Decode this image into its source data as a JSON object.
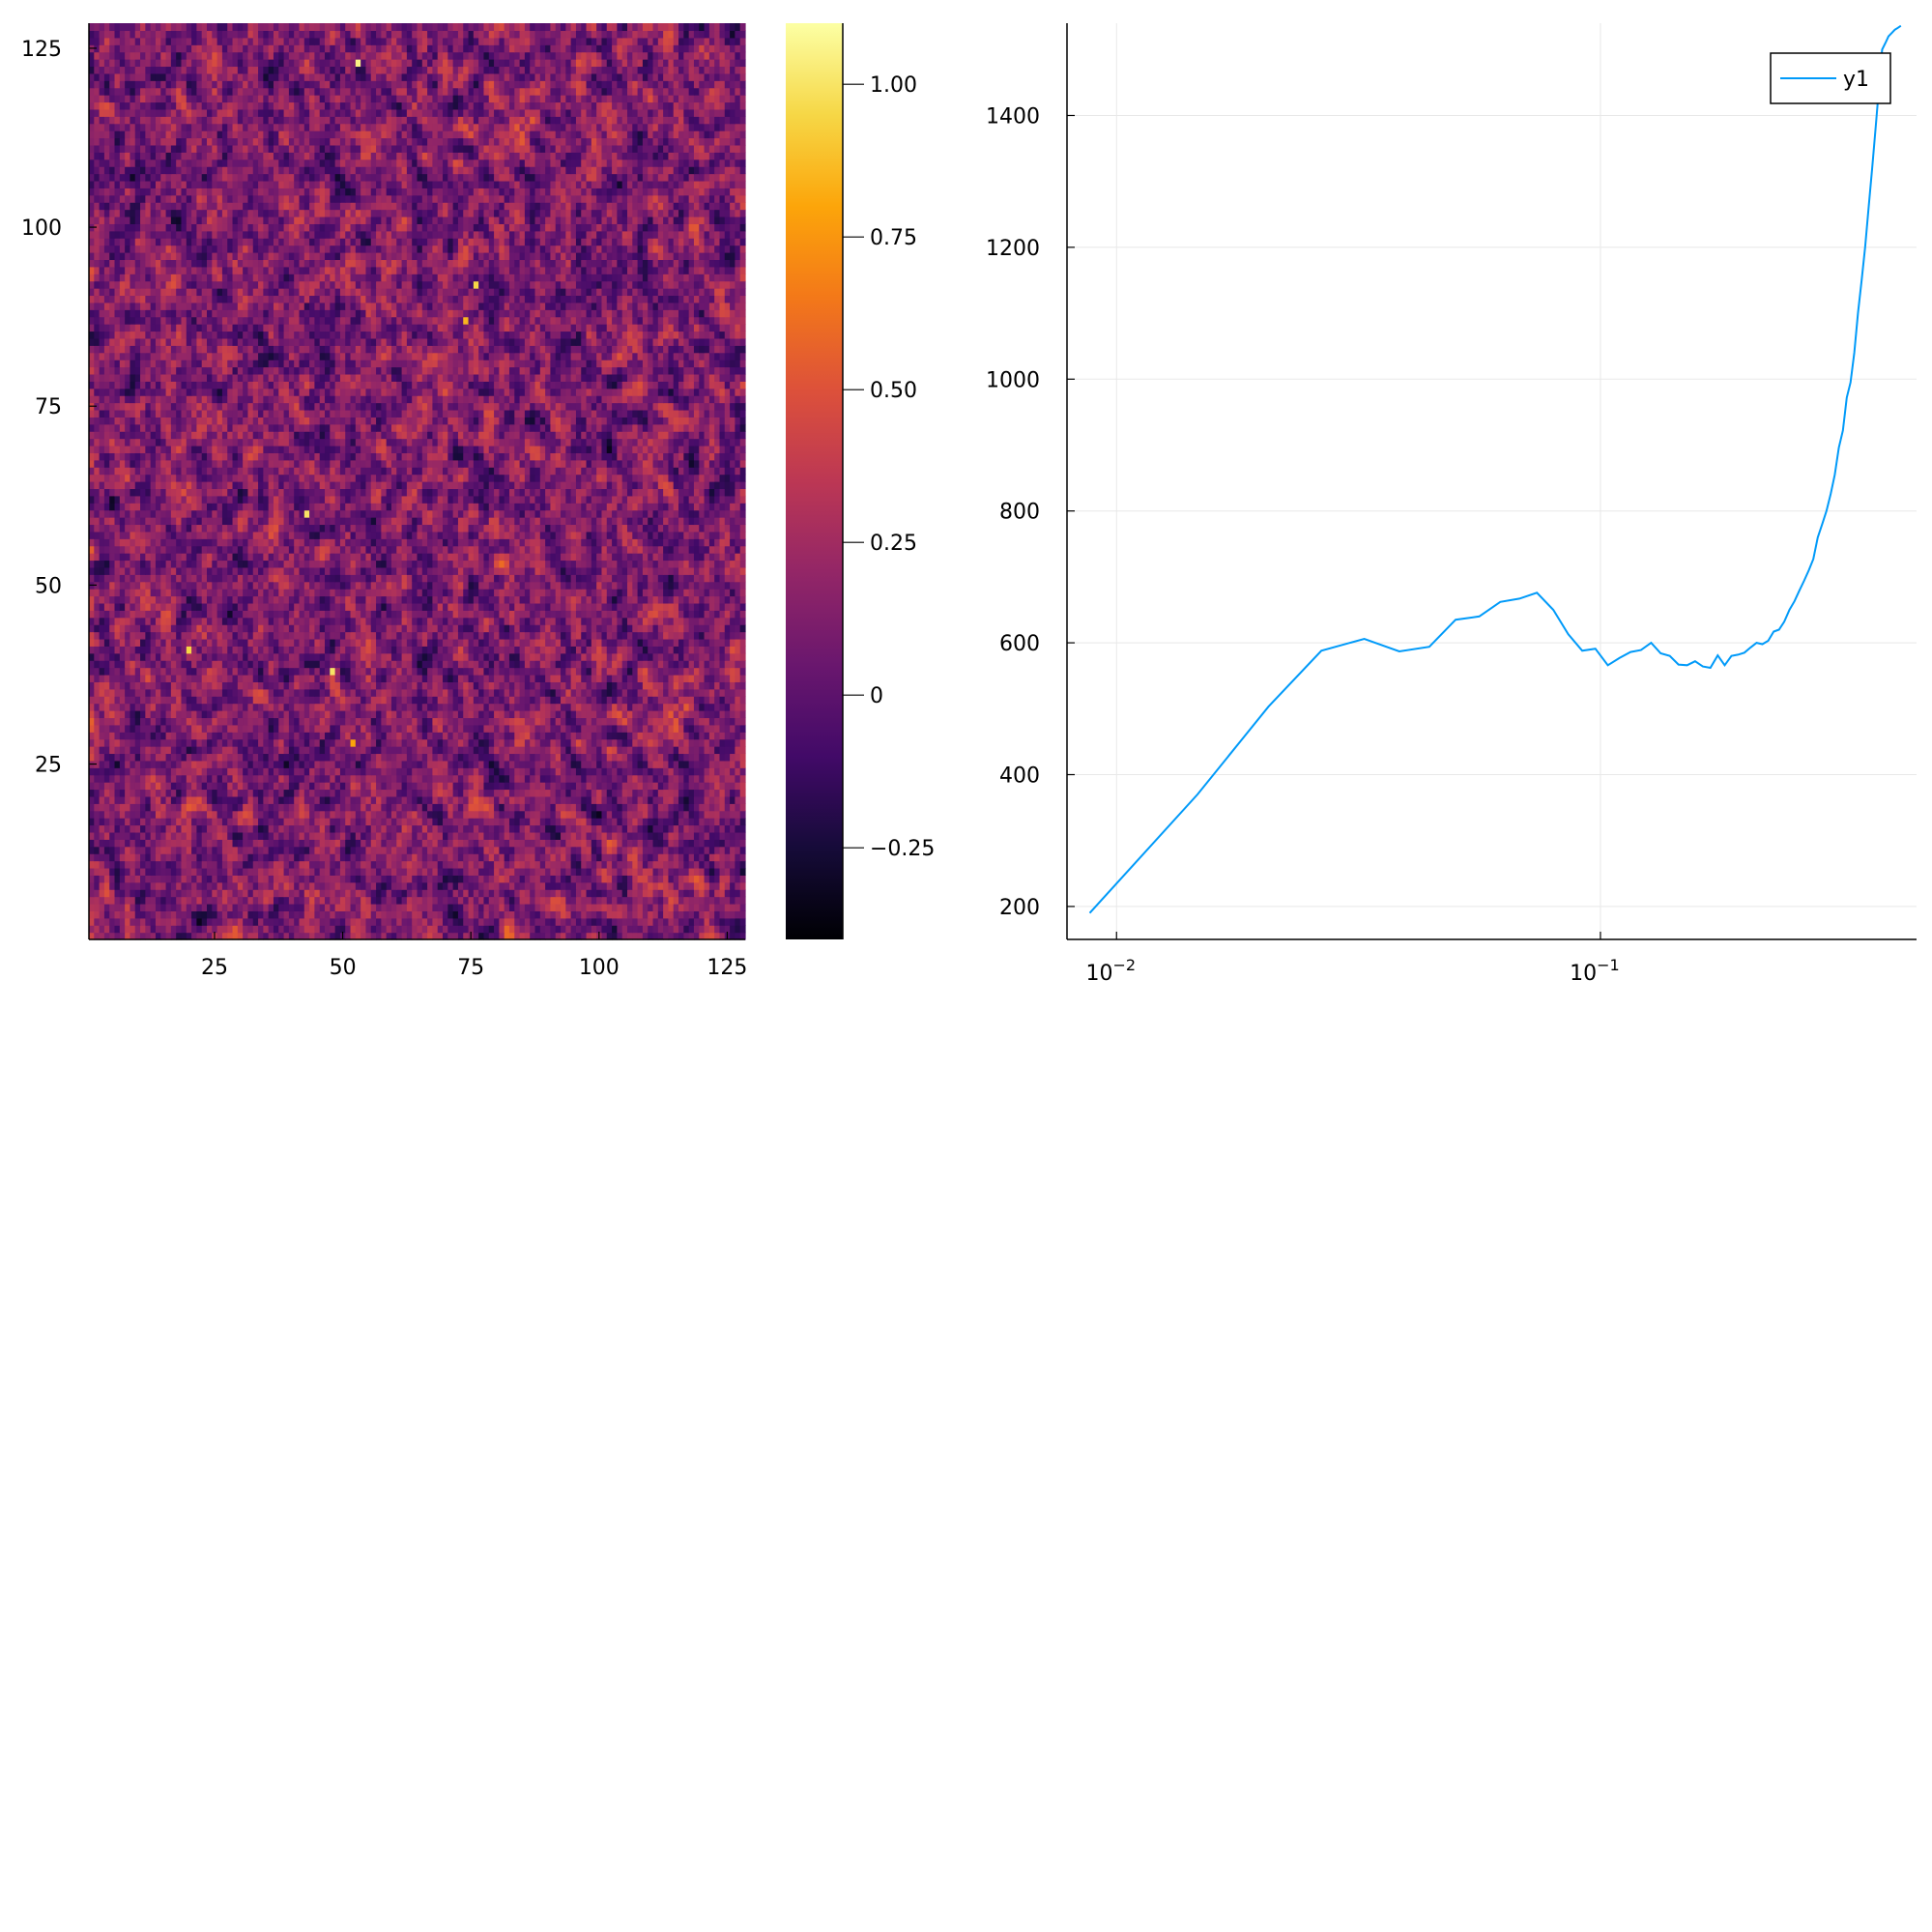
{
  "chart_data": [
    {
      "type": "heatmap",
      "title": "",
      "xlabel": "",
      "ylabel": "",
      "grid": false,
      "xlim": [
        0.5,
        128.5
      ],
      "ylim": [
        0.5,
        128.5
      ],
      "grid_size": [
        128,
        128
      ],
      "values_note_sampled": false,
      "x_ticks": [
        25,
        50,
        75,
        100,
        125
      ],
      "x_tick_labels": [
        "25",
        "50",
        "75",
        "100",
        "125"
      ],
      "y_ticks": [
        25,
        50,
        75,
        100,
        125
      ],
      "y_tick_labels": [
        "25",
        "50",
        "75",
        "100",
        "125"
      ],
      "colorbar": {
        "colormap": "inferno",
        "clim": [
          -0.4,
          1.1
        ],
        "ticks": [
          -0.25,
          0,
          0.25,
          0.5,
          0.75,
          1.0
        ],
        "tick_labels": [
          "−0.25",
          "0",
          "0.25",
          "0.50",
          "0.75",
          "1.00"
        ]
      },
      "mean_value": 0.12,
      "hotspots": [
        {
          "x": 53,
          "y": 123,
          "value": 1.05
        },
        {
          "x": 43,
          "y": 60,
          "value": 1.0
        },
        {
          "x": 48,
          "y": 38,
          "value": 1.0
        },
        {
          "x": 20,
          "y": 41,
          "value": 0.95
        },
        {
          "x": 76,
          "y": 92,
          "value": 0.95
        },
        {
          "x": 74,
          "y": 87,
          "value": 0.85
        },
        {
          "x": 52,
          "y": 28,
          "value": 0.8
        }
      ]
    },
    {
      "type": "line",
      "title": "",
      "xlabel": "",
      "ylabel": "",
      "xscale": "log",
      "grid": true,
      "legend_position": "top-right",
      "xlim": [
        0.0079,
        0.45
      ],
      "ylim": [
        150,
        1540
      ],
      "x_ticks": [
        0.01,
        0.1
      ],
      "x_tick_labels": [
        {
          "base": "10",
          "exp": "−2"
        },
        {
          "base": "10",
          "exp": "−1"
        }
      ],
      "y_ticks": [
        200,
        400,
        600,
        800,
        1000,
        1200,
        1400
      ],
      "y_tick_labels": [
        "200",
        "400",
        "600",
        "800",
        "1000",
        "1200",
        "1400"
      ],
      "series": [
        {
          "name": "y1",
          "color": "#009af9",
          "x": [
            0.0088,
            0.0147,
            0.0206,
            0.0265,
            0.0325,
            0.0384,
            0.0443,
            0.0502,
            0.0562,
            0.0621,
            0.068,
            0.0739,
            0.0799,
            0.0858,
            0.0917,
            0.0976,
            0.1036,
            0.1095,
            0.1154,
            0.1213,
            0.1273,
            0.1332,
            0.1391,
            0.145,
            0.151,
            0.1569,
            0.1628,
            0.1687,
            0.1747,
            0.1806,
            0.1865,
            0.1924,
            0.1984,
            0.2043,
            0.2102,
            0.2161,
            0.2221,
            0.228,
            0.2339,
            0.2398,
            0.2458,
            0.2517,
            0.2576,
            0.2635,
            0.2695,
            0.2754,
            0.2813,
            0.2872,
            0.2932,
            0.2991,
            0.305,
            0.3109,
            0.3169,
            0.3228,
            0.3287,
            0.3346,
            0.3406,
            0.3465,
            0.3524,
            0.3583,
            0.3643,
            0.3702,
            0.3761,
            0.382,
            0.388,
            0.3939,
            0.3998,
            0.4057,
            0.4117,
            0.4176
          ],
          "y": [
            190,
            370,
            503,
            588,
            606,
            587,
            594,
            635,
            640,
            662,
            667,
            676,
            650,
            613,
            588,
            591,
            566,
            577,
            586,
            589,
            600,
            584,
            580,
            567,
            566,
            572,
            564,
            562,
            581,
            566,
            580,
            582,
            585,
            593,
            600,
            598,
            603,
            617,
            620,
            632,
            650,
            663,
            679,
            694,
            710,
            727,
            760,
            780,
            800,
            826,
            855,
            896,
            922,
            972,
            995,
            1040,
            1100,
            1150,
            1200,
            1260,
            1320,
            1380,
            1440,
            1500,
            1510,
            1520,
            1525,
            1530,
            1533,
            1536
          ]
        }
      ]
    }
  ]
}
